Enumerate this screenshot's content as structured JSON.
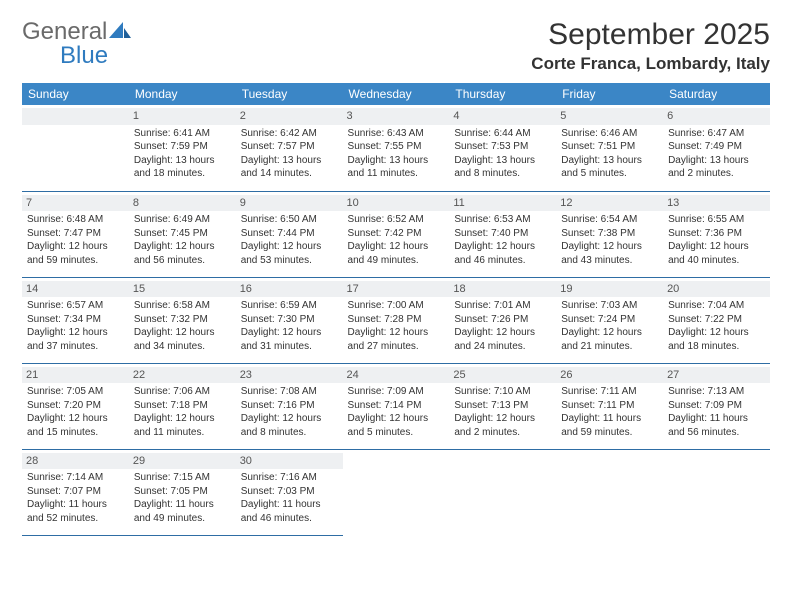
{
  "brand": {
    "line1": "General",
    "line2": "Blue"
  },
  "title": "September 2025",
  "subtitle": "Corte Franca, Lombardy, Italy",
  "colors": {
    "header_bg": "#3b86c6",
    "header_text": "#ffffff",
    "daynum_bg": "#eef0f2",
    "rule": "#2e6da4",
    "brand_grey": "#6a6a6a",
    "brand_blue": "#2f7bbf"
  },
  "days_of_week": [
    "Sunday",
    "Monday",
    "Tuesday",
    "Wednesday",
    "Thursday",
    "Friday",
    "Saturday"
  ],
  "weeks": [
    [
      {
        "n": "",
        "lines": []
      },
      {
        "n": "1",
        "lines": [
          "Sunrise: 6:41 AM",
          "Sunset: 7:59 PM",
          "Daylight: 13 hours and 18 minutes."
        ]
      },
      {
        "n": "2",
        "lines": [
          "Sunrise: 6:42 AM",
          "Sunset: 7:57 PM",
          "Daylight: 13 hours and 14 minutes."
        ]
      },
      {
        "n": "3",
        "lines": [
          "Sunrise: 6:43 AM",
          "Sunset: 7:55 PM",
          "Daylight: 13 hours and 11 minutes."
        ]
      },
      {
        "n": "4",
        "lines": [
          "Sunrise: 6:44 AM",
          "Sunset: 7:53 PM",
          "Daylight: 13 hours and 8 minutes."
        ]
      },
      {
        "n": "5",
        "lines": [
          "Sunrise: 6:46 AM",
          "Sunset: 7:51 PM",
          "Daylight: 13 hours and 5 minutes."
        ]
      },
      {
        "n": "6",
        "lines": [
          "Sunrise: 6:47 AM",
          "Sunset: 7:49 PM",
          "Daylight: 13 hours and 2 minutes."
        ]
      }
    ],
    [
      {
        "n": "7",
        "lines": [
          "Sunrise: 6:48 AM",
          "Sunset: 7:47 PM",
          "Daylight: 12 hours and 59 minutes."
        ]
      },
      {
        "n": "8",
        "lines": [
          "Sunrise: 6:49 AM",
          "Sunset: 7:45 PM",
          "Daylight: 12 hours and 56 minutes."
        ]
      },
      {
        "n": "9",
        "lines": [
          "Sunrise: 6:50 AM",
          "Sunset: 7:44 PM",
          "Daylight: 12 hours and 53 minutes."
        ]
      },
      {
        "n": "10",
        "lines": [
          "Sunrise: 6:52 AM",
          "Sunset: 7:42 PM",
          "Daylight: 12 hours and 49 minutes."
        ]
      },
      {
        "n": "11",
        "lines": [
          "Sunrise: 6:53 AM",
          "Sunset: 7:40 PM",
          "Daylight: 12 hours and 46 minutes."
        ]
      },
      {
        "n": "12",
        "lines": [
          "Sunrise: 6:54 AM",
          "Sunset: 7:38 PM",
          "Daylight: 12 hours and 43 minutes."
        ]
      },
      {
        "n": "13",
        "lines": [
          "Sunrise: 6:55 AM",
          "Sunset: 7:36 PM",
          "Daylight: 12 hours and 40 minutes."
        ]
      }
    ],
    [
      {
        "n": "14",
        "lines": [
          "Sunrise: 6:57 AM",
          "Sunset: 7:34 PM",
          "Daylight: 12 hours and 37 minutes."
        ]
      },
      {
        "n": "15",
        "lines": [
          "Sunrise: 6:58 AM",
          "Sunset: 7:32 PM",
          "Daylight: 12 hours and 34 minutes."
        ]
      },
      {
        "n": "16",
        "lines": [
          "Sunrise: 6:59 AM",
          "Sunset: 7:30 PM",
          "Daylight: 12 hours and 31 minutes."
        ]
      },
      {
        "n": "17",
        "lines": [
          "Sunrise: 7:00 AM",
          "Sunset: 7:28 PM",
          "Daylight: 12 hours and 27 minutes."
        ]
      },
      {
        "n": "18",
        "lines": [
          "Sunrise: 7:01 AM",
          "Sunset: 7:26 PM",
          "Daylight: 12 hours and 24 minutes."
        ]
      },
      {
        "n": "19",
        "lines": [
          "Sunrise: 7:03 AM",
          "Sunset: 7:24 PM",
          "Daylight: 12 hours and 21 minutes."
        ]
      },
      {
        "n": "20",
        "lines": [
          "Sunrise: 7:04 AM",
          "Sunset: 7:22 PM",
          "Daylight: 12 hours and 18 minutes."
        ]
      }
    ],
    [
      {
        "n": "21",
        "lines": [
          "Sunrise: 7:05 AM",
          "Sunset: 7:20 PM",
          "Daylight: 12 hours and 15 minutes."
        ]
      },
      {
        "n": "22",
        "lines": [
          "Sunrise: 7:06 AM",
          "Sunset: 7:18 PM",
          "Daylight: 12 hours and 11 minutes."
        ]
      },
      {
        "n": "23",
        "lines": [
          "Sunrise: 7:08 AM",
          "Sunset: 7:16 PM",
          "Daylight: 12 hours and 8 minutes."
        ]
      },
      {
        "n": "24",
        "lines": [
          "Sunrise: 7:09 AM",
          "Sunset: 7:14 PM",
          "Daylight: 12 hours and 5 minutes."
        ]
      },
      {
        "n": "25",
        "lines": [
          "Sunrise: 7:10 AM",
          "Sunset: 7:13 PM",
          "Daylight: 12 hours and 2 minutes."
        ]
      },
      {
        "n": "26",
        "lines": [
          "Sunrise: 7:11 AM",
          "Sunset: 7:11 PM",
          "Daylight: 11 hours and 59 minutes."
        ]
      },
      {
        "n": "27",
        "lines": [
          "Sunrise: 7:13 AM",
          "Sunset: 7:09 PM",
          "Daylight: 11 hours and 56 minutes."
        ]
      }
    ],
    [
      {
        "n": "28",
        "lines": [
          "Sunrise: 7:14 AM",
          "Sunset: 7:07 PM",
          "Daylight: 11 hours and 52 minutes."
        ]
      },
      {
        "n": "29",
        "lines": [
          "Sunrise: 7:15 AM",
          "Sunset: 7:05 PM",
          "Daylight: 11 hours and 49 minutes."
        ]
      },
      {
        "n": "30",
        "lines": [
          "Sunrise: 7:16 AM",
          "Sunset: 7:03 PM",
          "Daylight: 11 hours and 46 minutes."
        ]
      },
      {
        "n": "",
        "lines": []
      },
      {
        "n": "",
        "lines": []
      },
      {
        "n": "",
        "lines": []
      },
      {
        "n": "",
        "lines": []
      }
    ]
  ]
}
